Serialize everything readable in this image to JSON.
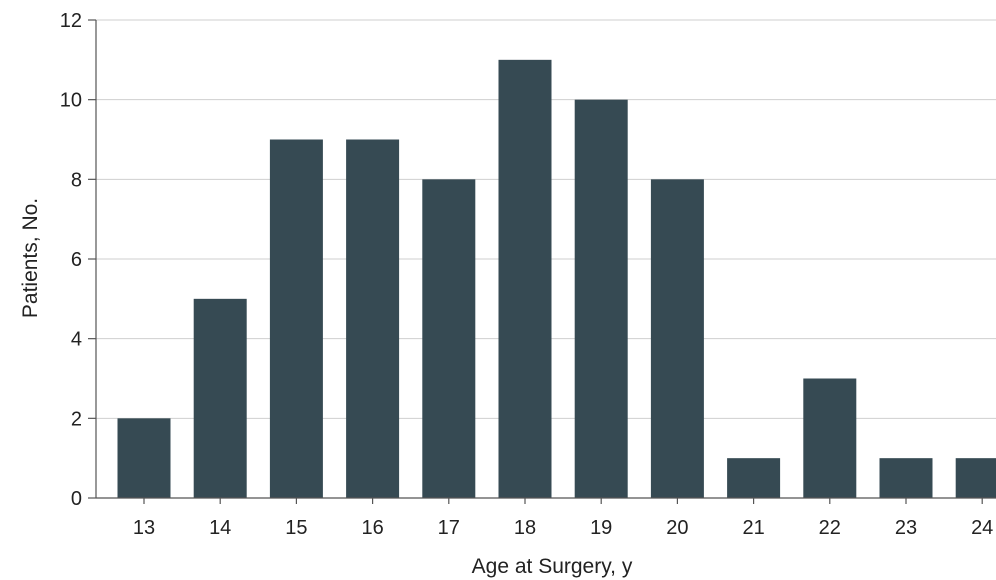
{
  "chart_data": {
    "type": "bar",
    "title": "",
    "xlabel": "Age at Surgery, y",
    "ylabel": "Patients, No.",
    "categories": [
      "13",
      "14",
      "15",
      "16",
      "17",
      "18",
      "19",
      "20",
      "21",
      "22",
      "23",
      "24"
    ],
    "values": [
      2,
      5,
      9,
      9,
      8,
      11,
      10,
      8,
      1,
      3,
      1,
      1
    ],
    "ylim": [
      0,
      12
    ],
    "yticks": [
      0,
      2,
      4,
      6,
      8,
      10,
      12
    ],
    "grid": true,
    "legend": "none",
    "colors": {
      "bar": "#364a53",
      "grid": "#cfcfcf",
      "axis": "#555555",
      "text": "#222222"
    }
  }
}
